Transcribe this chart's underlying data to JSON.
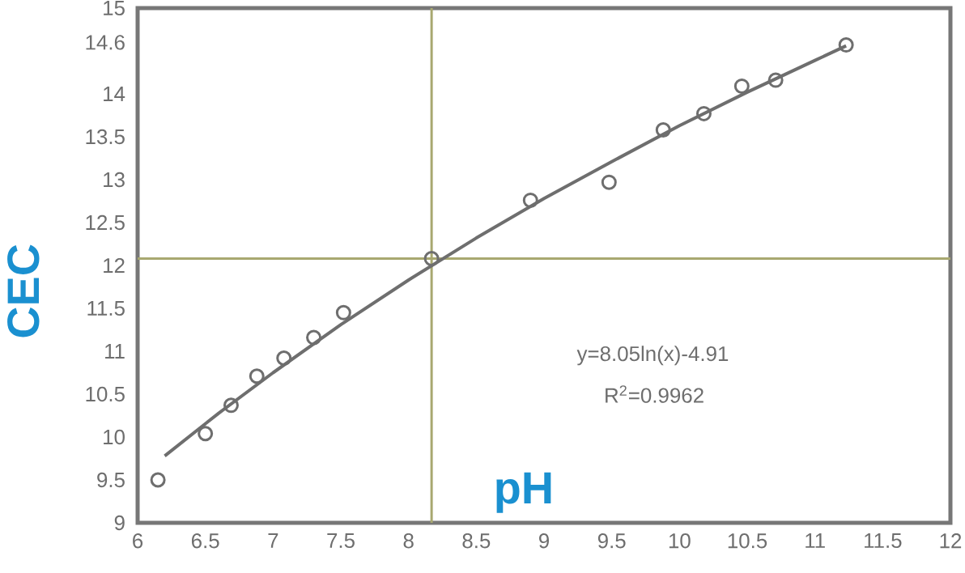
{
  "chart_data": {
    "type": "scatter",
    "xlabel": "pH",
    "ylabel": "CEC",
    "xlim": [
      6,
      12
    ],
    "xticks": [
      6,
      6.5,
      7,
      7.5,
      8,
      8.5,
      9,
      9.5,
      10,
      10.5,
      11,
      11.5,
      12
    ],
    "ylim": [
      9,
      15
    ],
    "yticks": [
      9,
      9.5,
      10,
      10.5,
      11,
      11.5,
      12,
      12.5,
      13,
      13.5,
      14,
      14.6,
      15
    ],
    "marker": "circle",
    "grid": false,
    "series": [
      {
        "color": "#6e6e6e",
        "x": [
          6.15,
          6.5,
          6.69,
          6.88,
          7.08,
          7.3,
          7.52,
          8.17,
          8.9,
          9.48,
          9.88,
          10.18,
          10.46,
          10.71,
          11.23
        ],
        "values": [
          9.5,
          10.04,
          10.37,
          10.71,
          10.92,
          11.16,
          11.45,
          12.08,
          12.76,
          12.97,
          13.58,
          13.77,
          14.09,
          14.16,
          14.57
        ]
      },
      {
        "type": "line",
        "color": "#6e6e6e",
        "marker": "none",
        "x": [
          6.2,
          6.6,
          7,
          7.5,
          8,
          8.5,
          9,
          9.5,
          10,
          10.5,
          11,
          11.23
        ],
        "values": [
          9.78,
          10.28,
          10.75,
          11.31,
          11.83,
          12.32,
          12.78,
          13.21,
          13.63,
          14.02,
          14.39,
          14.56
        ]
      }
    ],
    "ref_lines": [
      {
        "axis": "y",
        "value": 12.08,
        "color": "#a8a870"
      },
      {
        "axis": "x",
        "value": 8.17,
        "color": "#a8a870"
      }
    ],
    "annotations": [
      "y=8.05ln(x)-4.91",
      "R$^{2}$=0.9962"
    ]
  }
}
